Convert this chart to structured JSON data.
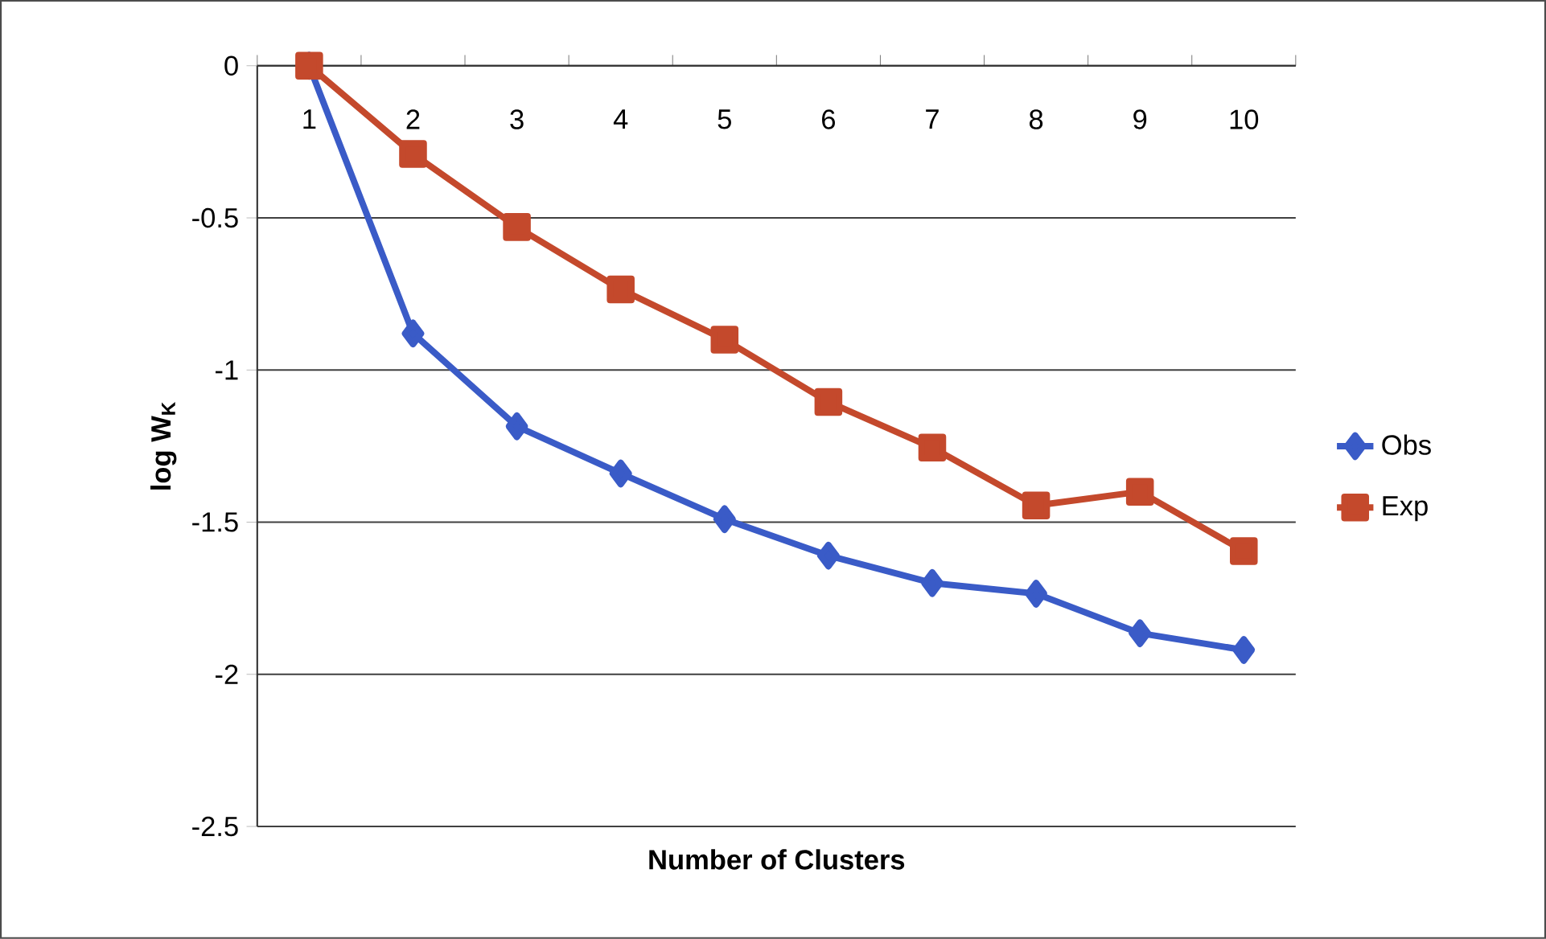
{
  "chart_data": {
    "type": "line",
    "xlabel": "Number of Clusters",
    "ylabel": "log W$_{K}$",
    "categories": [
      "1",
      "2",
      "3",
      "4",
      "5",
      "6",
      "7",
      "8",
      "9",
      "10"
    ],
    "series": [
      {
        "name": "Obs",
        "color": "#3a5bc7",
        "marker": "diamond",
        "values": [
          0,
          -0.88,
          -1.185,
          -1.34,
          -1.49,
          -1.61,
          -1.7,
          -1.735,
          -1.865,
          -1.92
        ]
      },
      {
        "name": "Exp",
        "color": "#c4492c",
        "marker": "square",
        "values": [
          0,
          -0.29,
          -0.53,
          -0.735,
          -0.9,
          -1.105,
          -1.255,
          -1.445,
          -1.4,
          -1.595
        ]
      }
    ],
    "ylim": [
      -2.5,
      0
    ],
    "yticks": [
      -2.5,
      -2,
      -1.5,
      -1,
      -0.5,
      0
    ],
    "grid": "y",
    "legend": "right"
  }
}
